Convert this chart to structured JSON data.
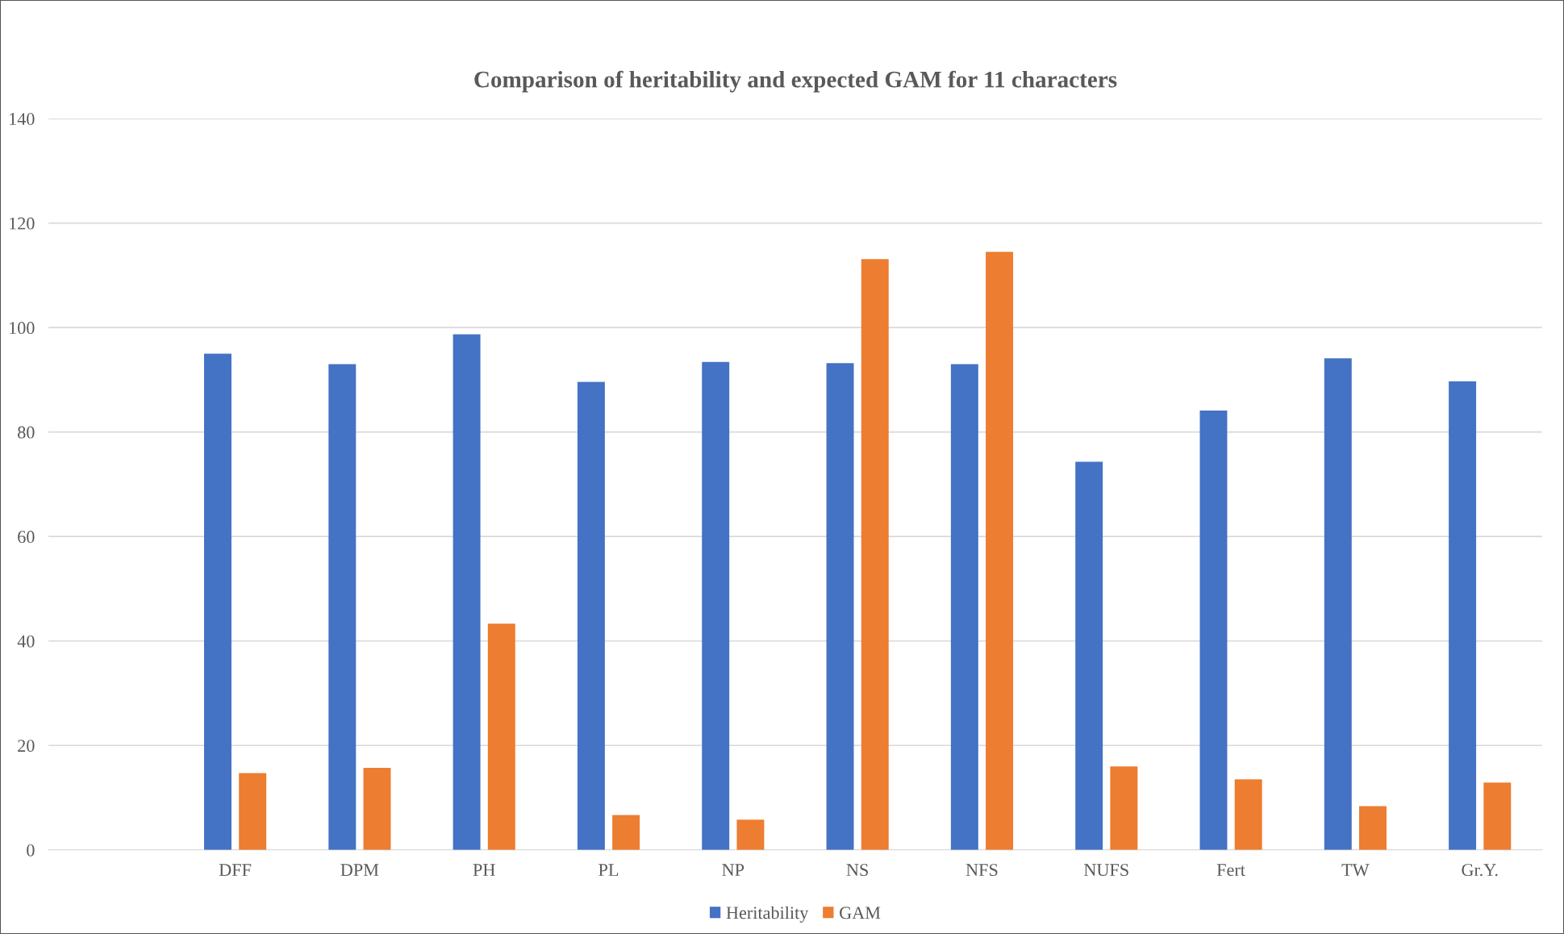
{
  "chart_data": {
    "type": "bar",
    "title": "Comparison of heritability and expected GAM for 11 characters",
    "categories": [
      null,
      "DFF",
      "DPM",
      "PH",
      "PL",
      "NP",
      "NS",
      "NFS",
      "NUFS",
      "Fert",
      "TW",
      "Gr.Y."
    ],
    "series": [
      {
        "name": "Heritability",
        "color": "#4472c4",
        "values": [
          null,
          95.0,
          93.0,
          98.7,
          89.6,
          93.4,
          93.2,
          93.0,
          74.3,
          84.1,
          94.1,
          89.7
        ]
      },
      {
        "name": "GAM",
        "color": "#ed7d31",
        "values": [
          null,
          14.7,
          15.7,
          43.3,
          6.7,
          5.8,
          113.1,
          114.5,
          16.0,
          13.5,
          8.4,
          12.9
        ]
      }
    ],
    "ylim": [
      0,
      140
    ],
    "yticks": [
      0,
      20,
      40,
      60,
      80,
      100,
      120,
      140
    ],
    "grid": "y",
    "legend": "bottom"
  }
}
